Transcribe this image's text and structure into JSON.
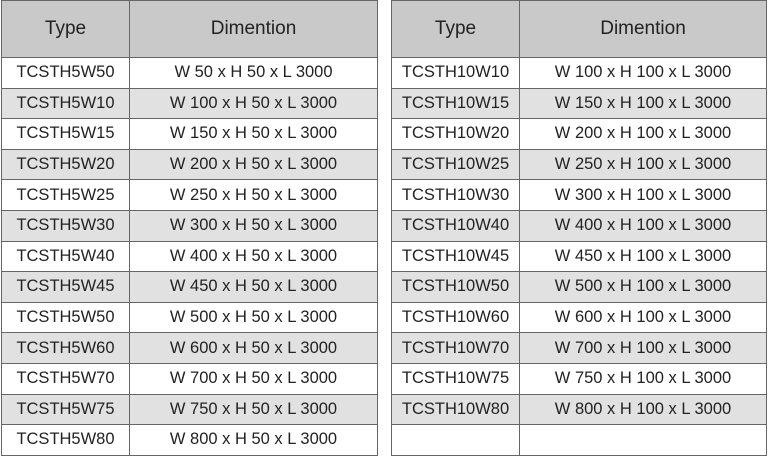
{
  "tables": [
    {
      "headers": [
        "Type",
        "Dimention"
      ],
      "rows": [
        [
          "TCSTH5W50",
          "W 50 x H 50 x L 3000"
        ],
        [
          "TCSTH5W10",
          "W 100 x H 50 x L 3000"
        ],
        [
          "TCSTH5W15",
          "W 150 x H 50 x L 3000"
        ],
        [
          "TCSTH5W20",
          "W 200 x H 50 x L 3000"
        ],
        [
          "TCSTH5W25",
          "W 250 x H 50 x L 3000"
        ],
        [
          "TCSTH5W30",
          "W 300 x H 50 x L 3000"
        ],
        [
          "TCSTH5W40",
          "W 400 x H 50 x L 3000"
        ],
        [
          "TCSTH5W45",
          "W 450 x H 50 x L 3000"
        ],
        [
          "TCSTH5W50",
          "W 500 x H 50 x L 3000"
        ],
        [
          "TCSTH5W60",
          "W 600 x H 50 x L 3000"
        ],
        [
          "TCSTH5W70",
          "W 700 x H 50 x L 3000"
        ],
        [
          "TCSTH5W75",
          "W 750 x H 50 x L 3000"
        ],
        [
          "TCSTH5W80",
          "W 800 x H 50 x L 3000"
        ]
      ]
    },
    {
      "headers": [
        "Type",
        "Dimention"
      ],
      "rows": [
        [
          "TCSTH10W10",
          "W 100 x H 100 x L 3000"
        ],
        [
          "TCSTH10W15",
          "W 150 x H 100 x L 3000"
        ],
        [
          "TCSTH10W20",
          "W 200 x H 100 x L 3000"
        ],
        [
          "TCSTH10W25",
          "W 250 x H 100 x L 3000"
        ],
        [
          "TCSTH10W30",
          "W 300 x H 100 x L 3000"
        ],
        [
          "TCSTH10W40",
          "W 400 x H 100 x L 3000"
        ],
        [
          "TCSTH10W45",
          "W 450 x H 100 x L 3000"
        ],
        [
          "TCSTH10W50",
          "W 500 x H 100 x L 3000"
        ],
        [
          "TCSTH10W60",
          "W 600 x H 100 x L 3000"
        ],
        [
          "TCSTH10W70",
          "W 700 x H 100 x L 3000"
        ],
        [
          "TCSTH10W75",
          "W 750 x H 100 x L 3000"
        ],
        [
          "TCSTH10W80",
          "W 800 x H 100 x L 3000"
        ],
        [
          "",
          ""
        ]
      ]
    }
  ],
  "colors": {
    "header_bg": "#c9c9c9",
    "stripe_bg": "#e1e1e1",
    "border": "#666666"
  }
}
